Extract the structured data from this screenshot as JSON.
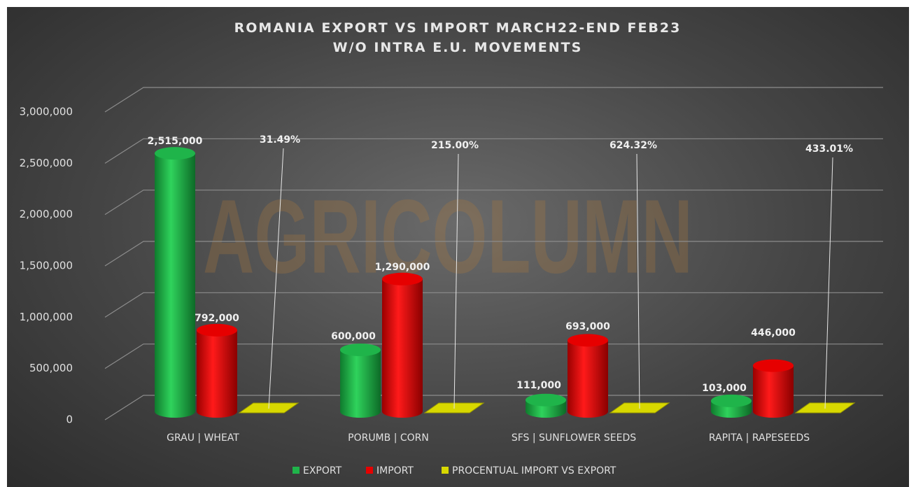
{
  "chart_data": {
    "type": "bar3d",
    "title": "ROMANIA EXPORT VS IMPORT MARCH22-END FEB23 W/O INTRA E.U. MOVEMENTS",
    "watermark": "AGRICOLUMN",
    "categories": [
      "GRAU | WHEAT",
      "PORUMB | CORN",
      "SFS | SUNFLOWER SEEDS",
      "RAPITA | RAPESEEDS"
    ],
    "series": [
      {
        "name": "EXPORT",
        "color": "#1fb44a",
        "values": [
          2515000,
          600000,
          111000,
          103000
        ],
        "value_labels": [
          "2,515,000",
          "600,000",
          "111,000",
          "103,000"
        ]
      },
      {
        "name": "IMPORT",
        "color": "#e60000",
        "values": [
          792000,
          1290000,
          693000,
          446000
        ],
        "value_labels": [
          "792,000",
          "1,290,000",
          "693,000",
          "446,000"
        ]
      },
      {
        "name": "PROCENTUAL IMPORT VS EXPORT",
        "color": "#d8d800",
        "values": [
          31.49,
          215.0,
          624.32,
          433.01
        ],
        "value_labels": [
          "31.49%",
          "215.00%",
          "624.32%",
          "433.01%"
        ]
      }
    ],
    "ylim": [
      0,
      3000000
    ],
    "yticks": [
      0,
      {
        "value": 500000,
        "label": "500,000"
      },
      {
        "value": 1000000,
        "label": "1,000,000"
      },
      {
        "value": 1500000,
        "label": "1,500,000"
      },
      {
        "value": 2000000,
        "label": "2,000,000"
      },
      {
        "value": 2500000,
        "label": "2,500,000"
      },
      {
        "value": 3000000,
        "label": "3,000,000"
      }
    ],
    "grid": true,
    "legend": "bottom"
  }
}
